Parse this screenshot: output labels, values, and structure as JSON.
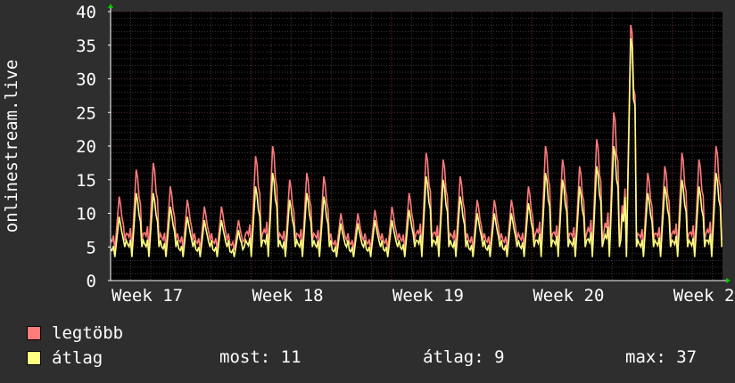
{
  "chart_data": {
    "type": "line",
    "ylabel": "onlinestream.live",
    "ylim": [
      0,
      40
    ],
    "y_ticks": [
      "0",
      "5",
      "10",
      "15",
      "20",
      "25",
      "30",
      "35",
      "40"
    ],
    "x_ticks": [
      "Week 17",
      "Week 18",
      "Week 19",
      "Week 20",
      "Week 2"
    ],
    "x_range": [
      0,
      30.5
    ],
    "x_tick_positions": [
      0,
      7,
      14,
      21,
      28
    ],
    "grid": true,
    "series": [
      {
        "name": "legtöbb",
        "color": "#ff7a7a",
        "daily_peaks": [
          12.5,
          16.5,
          17.5,
          14,
          12,
          11,
          11,
          9,
          18.5,
          20,
          15,
          16,
          15.5,
          10,
          10,
          10.5,
          11,
          13,
          19,
          18,
          15.5,
          12,
          12,
          12,
          14,
          20,
          18,
          17,
          21,
          25,
          38,
          16,
          17,
          19,
          18,
          20
        ]
      },
      {
        "name": "átlag",
        "color": "#ffff80",
        "daily_peaks": [
          9.5,
          13,
          13,
          11,
          9.5,
          9,
          9,
          7.5,
          14,
          16,
          12,
          13,
          12.5,
          8.5,
          8.5,
          9,
          9,
          10.5,
          15.5,
          15,
          12.5,
          10,
          10,
          10,
          11.5,
          16,
          15,
          14,
          17,
          20,
          36,
          13,
          14,
          15,
          14,
          16
        ]
      }
    ]
  },
  "legend": {
    "max_label": "legtöbb",
    "avg_label": "átlag",
    "max_color": "#ff7a7a",
    "avg_color": "#ffff80"
  },
  "stats": {
    "now": "most: 11",
    "avg": "átlag: 9",
    "max": "max: 37"
  }
}
